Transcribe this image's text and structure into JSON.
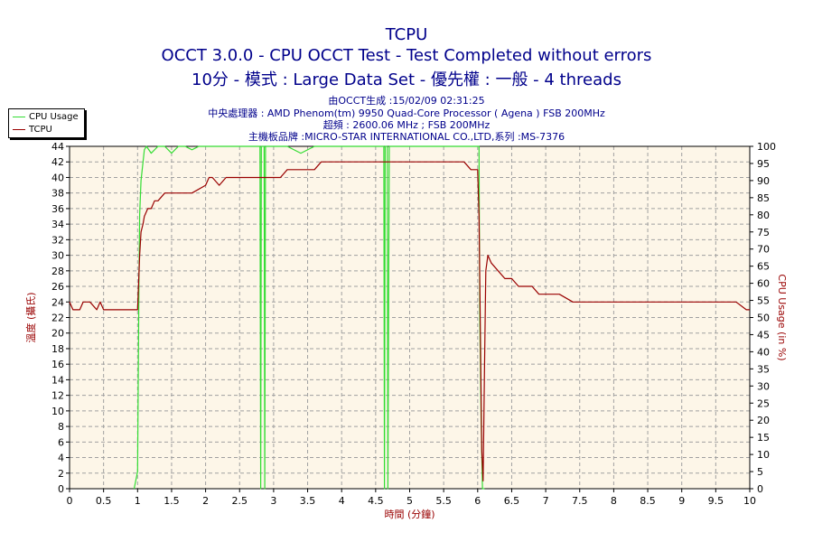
{
  "titles": {
    "line1": "TCPU",
    "line2": "OCCT 3.0.0 - CPU OCCT Test - Test Completed without errors",
    "line3": "10分 - 模式 : Large Data Set - 優先權 : 一般 - 4 threads"
  },
  "subtitles": {
    "generated": "由OCCT生成 :15/02/09 02:31:25",
    "cpu": "中央處理器 : AMD Phenom(tm) 9950 Quad-Core Processor ( Agena ) FSB 200MHz",
    "clock": "超頻 : 2600.06 MHz ; FSB 200MHz",
    "board": "主機板品牌 :MICRO-STAR INTERNATIONAL CO.,LTD,系列 :MS-7376"
  },
  "colors": {
    "plot_bg": "#fdf6e8",
    "grid": "#a0a0a0",
    "cpu_usage": "#33dd33",
    "tcpu": "#990000",
    "axis_label_left": "#990000",
    "axis_label_right": "#990000",
    "xlabel": "#990000"
  },
  "chart_data": {
    "type": "line",
    "title": "TCPU",
    "xlabel": "時間 (分鐘)",
    "ylabel": "溫度 (攝氏)",
    "y2label": "CPU Usage (in %)",
    "xlim": [
      0,
      10
    ],
    "ylim": [
      0,
      44
    ],
    "y2lim": [
      0,
      100
    ],
    "xticks": [
      "0",
      "0.5",
      "1",
      "1.5",
      "2",
      "2.5",
      "3",
      "3.5",
      "4",
      "4.5",
      "5",
      "5.5",
      "6",
      "6.5",
      "7",
      "7.5",
      "8",
      "8.5",
      "9",
      "9.5",
      "10"
    ],
    "yticks": [
      "0",
      "2",
      "4",
      "6",
      "8",
      "10",
      "12",
      "14",
      "16",
      "18",
      "20",
      "22",
      "24",
      "26",
      "28",
      "30",
      "32",
      "34",
      "36",
      "38",
      "40",
      "42",
      "44"
    ],
    "y2ticks": [
      "0",
      "5",
      "10",
      "15",
      "20",
      "25",
      "30",
      "35",
      "40",
      "45",
      "50",
      "55",
      "60",
      "65",
      "70",
      "75",
      "80",
      "85",
      "90",
      "95",
      "100"
    ],
    "grid": true,
    "legend_position": "top-left",
    "series": [
      {
        "name": "CPU Usage",
        "axis": "right",
        "x": [
          0.95,
          1.0,
          1.02,
          1.03,
          1.05,
          1.1,
          1.13,
          1.2,
          1.3,
          1.4,
          1.5,
          1.6,
          1.7,
          1.8,
          1.9,
          2.0,
          2.2,
          2.4,
          2.6,
          2.78,
          2.8,
          2.81,
          2.82,
          2.83,
          2.85,
          2.86,
          2.87,
          2.88,
          2.9,
          3.0,
          3.2,
          3.4,
          3.6,
          3.8,
          4.0,
          4.2,
          4.4,
          4.6,
          4.62,
          4.63,
          4.64,
          4.65,
          4.67,
          4.68,
          4.7,
          4.8,
          5.0,
          5.2,
          5.4,
          5.6,
          5.8,
          6.0,
          6.02,
          6.03,
          6.05,
          6.07,
          6.1
        ],
        "values": [
          0,
          5,
          60,
          80,
          90,
          99,
          100,
          98,
          100,
          100,
          98,
          100,
          100,
          99,
          100,
          100,
          100,
          100,
          100,
          100,
          100,
          0,
          100,
          100,
          100,
          100,
          0,
          100,
          100,
          100,
          100,
          98,
          100,
          100,
          100,
          100,
          100,
          100,
          100,
          0,
          100,
          100,
          100,
          0,
          100,
          100,
          100,
          100,
          100,
          100,
          100,
          100,
          100,
          50,
          20,
          0,
          0
        ]
      },
      {
        "name": "TCPU",
        "axis": "left",
        "x": [
          0,
          0.05,
          0.15,
          0.2,
          0.3,
          0.4,
          0.45,
          0.5,
          0.6,
          0.7,
          0.8,
          0.9,
          1.0,
          1.03,
          1.05,
          1.08,
          1.1,
          1.15,
          1.2,
          1.25,
          1.3,
          1.4,
          1.5,
          1.6,
          1.7,
          1.8,
          2.0,
          2.05,
          2.1,
          2.2,
          2.3,
          2.4,
          2.5,
          2.6,
          2.7,
          2.8,
          2.9,
          3.0,
          3.1,
          3.2,
          3.3,
          3.4,
          3.5,
          3.6,
          3.7,
          3.8,
          3.9,
          4.0,
          4.2,
          4.4,
          4.6,
          4.7,
          4.8,
          4.9,
          5.0,
          5.1,
          5.2,
          5.3,
          5.4,
          5.5,
          5.6,
          5.7,
          5.8,
          5.9,
          6.0,
          6.02,
          6.04,
          6.06,
          6.08,
          6.1,
          6.12,
          6.15,
          6.2,
          6.3,
          6.4,
          6.5,
          6.6,
          6.7,
          6.8,
          6.9,
          7.0,
          7.2,
          7.4,
          7.6,
          7.8,
          8.0,
          8.2,
          8.4,
          8.6,
          8.8,
          9.0,
          9.2,
          9.4,
          9.6,
          9.8,
          9.95,
          10.0
        ],
        "values": [
          24,
          23,
          23,
          24,
          24,
          23,
          24,
          23,
          23,
          23,
          23,
          23,
          23,
          30,
          33,
          34,
          35,
          36,
          36,
          37,
          37,
          38,
          38,
          38,
          38,
          38,
          39,
          40,
          40,
          39,
          40,
          40,
          40,
          40,
          40,
          40,
          40,
          40,
          40,
          41,
          41,
          41,
          41,
          41,
          42,
          42,
          42,
          42,
          42,
          42,
          42,
          42,
          42,
          42,
          42,
          42,
          42,
          42,
          42,
          42,
          42,
          42,
          42,
          41,
          41,
          35,
          20,
          5,
          1,
          15,
          28,
          30,
          29,
          28,
          27,
          27,
          26,
          26,
          26,
          25,
          25,
          25,
          24,
          24,
          24,
          24,
          24,
          24,
          24,
          24,
          24,
          24,
          24,
          24,
          24,
          23,
          23
        ]
      }
    ]
  }
}
